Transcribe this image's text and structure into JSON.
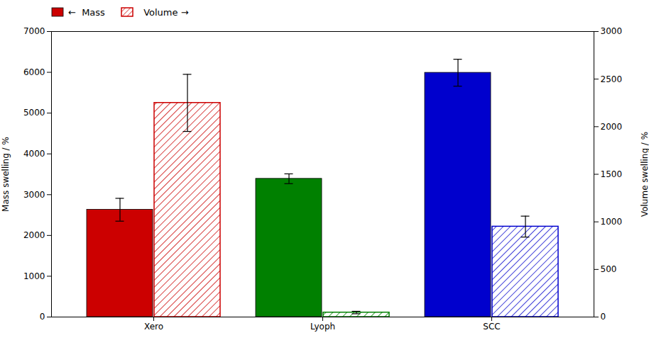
{
  "chart_data": {
    "type": "bar",
    "categories": [
      "Xero",
      "Lyoph",
      "SCC"
    ],
    "ylabel": "Mass swelling / %",
    "y2label": "Volume swelling / %",
    "ylim": [
      0,
      7000
    ],
    "yticks": [
      0,
      1000,
      2000,
      3000,
      4000,
      5000,
      6000,
      7000
    ],
    "y2lim": [
      0,
      3000
    ],
    "y2ticks": [
      0,
      500,
      1000,
      1500,
      2000,
      2500,
      3000
    ],
    "legend": "upper left",
    "grid": false,
    "series": [
      {
        "name": "←  Mass",
        "color": "#cc0000",
        "colors": [
          "#cc0000",
          "#008000",
          "#0000cd"
        ],
        "values": [
          2630,
          3390,
          5990
        ],
        "errors": [
          280,
          120,
          330
        ]
      },
      {
        "name": "  Volume →",
        "axis": "y2",
        "color": "#cc0000",
        "colors": [
          "#cc0000",
          "#008000",
          "#0000cd"
        ],
        "values": [
          2250,
          47,
          950
        ],
        "errors": [
          300,
          13,
          110
        ]
      }
    ]
  }
}
